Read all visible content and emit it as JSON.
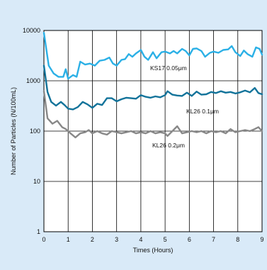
{
  "chart_data": {
    "type": "line",
    "xlabel": "Times (Hours)",
    "ylabel": "Number of Particles (N/100mL)",
    "xlim": [
      0,
      9
    ],
    "ylim": [
      1,
      10000
    ],
    "yscale": "log",
    "grid": true,
    "x_ticks": [
      "0",
      "1",
      "2",
      "3",
      "4",
      "5",
      "6",
      "7",
      "8",
      "9"
    ],
    "y_ticks": [
      "1",
      "10",
      "100",
      "1000",
      "10000"
    ],
    "colors": {
      "background": "#d9eaf8",
      "plot_area": "#ffffff"
    },
    "series": [
      {
        "name": "KS17 0.05μm",
        "color": "#2bb0e6",
        "points": [
          [
            0,
            9000
          ],
          [
            0.2,
            2000
          ],
          [
            0.4,
            1400
          ],
          [
            0.6,
            1200
          ],
          [
            0.8,
            1200
          ],
          [
            0.9,
            1700
          ],
          [
            1.0,
            1100
          ],
          [
            1.2,
            1300
          ],
          [
            1.35,
            1200
          ],
          [
            1.5,
            2400
          ],
          [
            1.7,
            2100
          ],
          [
            1.9,
            2200
          ],
          [
            2.1,
            2000
          ],
          [
            2.3,
            2500
          ],
          [
            2.5,
            2600
          ],
          [
            2.7,
            2900
          ],
          [
            2.85,
            2200
          ],
          [
            3.0,
            2000
          ],
          [
            3.2,
            2600
          ],
          [
            3.35,
            2700
          ],
          [
            3.5,
            3400
          ],
          [
            3.65,
            3000
          ],
          [
            3.8,
            3500
          ],
          [
            4.0,
            4100
          ],
          [
            4.15,
            3000
          ],
          [
            4.3,
            2600
          ],
          [
            4.5,
            3700
          ],
          [
            4.65,
            2800
          ],
          [
            4.85,
            3700
          ],
          [
            5.0,
            3800
          ],
          [
            5.2,
            3500
          ],
          [
            5.35,
            3900
          ],
          [
            5.5,
            3500
          ],
          [
            5.7,
            4300
          ],
          [
            5.85,
            3900
          ],
          [
            6.0,
            3200
          ],
          [
            6.15,
            4300
          ],
          [
            6.3,
            4400
          ],
          [
            6.5,
            3900
          ],
          [
            6.65,
            3000
          ],
          [
            6.85,
            3600
          ],
          [
            7.0,
            3800
          ],
          [
            7.2,
            3600
          ],
          [
            7.4,
            4100
          ],
          [
            7.6,
            4200
          ],
          [
            7.75,
            4900
          ],
          [
            7.9,
            3700
          ],
          [
            8.1,
            3100
          ],
          [
            8.25,
            4000
          ],
          [
            8.4,
            3400
          ],
          [
            8.6,
            3000
          ],
          [
            8.75,
            4600
          ],
          [
            8.9,
            4300
          ],
          [
            9.0,
            3300
          ]
        ]
      },
      {
        "name": "KL26 0.1μm",
        "color": "#12739a",
        "points": [
          [
            0,
            2000
          ],
          [
            0.15,
            600
          ],
          [
            0.3,
            380
          ],
          [
            0.5,
            320
          ],
          [
            0.7,
            380
          ],
          [
            0.85,
            330
          ],
          [
            1.0,
            280
          ],
          [
            1.2,
            270
          ],
          [
            1.4,
            300
          ],
          [
            1.6,
            380
          ],
          [
            1.8,
            340
          ],
          [
            2.0,
            290
          ],
          [
            2.2,
            350
          ],
          [
            2.4,
            330
          ],
          [
            2.6,
            450
          ],
          [
            2.8,
            450
          ],
          [
            3.0,
            390
          ],
          [
            3.2,
            430
          ],
          [
            3.4,
            460
          ],
          [
            3.6,
            450
          ],
          [
            3.8,
            440
          ],
          [
            4.0,
            520
          ],
          [
            4.2,
            480
          ],
          [
            4.4,
            460
          ],
          [
            4.6,
            490
          ],
          [
            4.8,
            470
          ],
          [
            5.0,
            520
          ],
          [
            5.1,
            620
          ],
          [
            5.3,
            530
          ],
          [
            5.5,
            510
          ],
          [
            5.7,
            500
          ],
          [
            5.9,
            580
          ],
          [
            6.1,
            500
          ],
          [
            6.3,
            610
          ],
          [
            6.5,
            530
          ],
          [
            6.7,
            540
          ],
          [
            6.9,
            600
          ],
          [
            7.1,
            570
          ],
          [
            7.3,
            620
          ],
          [
            7.5,
            580
          ],
          [
            7.7,
            600
          ],
          [
            7.9,
            560
          ],
          [
            8.1,
            590
          ],
          [
            8.3,
            640
          ],
          [
            8.5,
            590
          ],
          [
            8.7,
            720
          ],
          [
            8.85,
            570
          ],
          [
            9.0,
            540
          ]
        ]
      },
      {
        "name": "KL26 0.2μm",
        "color": "#888888",
        "points": [
          [
            0,
            620
          ],
          [
            0.15,
            180
          ],
          [
            0.35,
            140
          ],
          [
            0.55,
            160
          ],
          [
            0.75,
            120
          ],
          [
            0.9,
            110
          ],
          [
            1.1,
            90
          ],
          [
            1.3,
            75
          ],
          [
            1.5,
            90
          ],
          [
            1.7,
            95
          ],
          [
            1.85,
            105
          ],
          [
            2.0,
            90
          ],
          [
            2.2,
            100
          ],
          [
            2.4,
            90
          ],
          [
            2.6,
            85
          ],
          [
            2.8,
            100
          ],
          [
            3.0,
            95
          ],
          [
            3.2,
            90
          ],
          [
            3.4,
            95
          ],
          [
            3.6,
            100
          ],
          [
            3.8,
            90
          ],
          [
            4.0,
            95
          ],
          [
            4.2,
            90
          ],
          [
            4.4,
            100
          ],
          [
            4.6,
            90
          ],
          [
            4.8,
            95
          ],
          [
            5.0,
            90
          ],
          [
            5.1,
            80
          ],
          [
            5.3,
            100
          ],
          [
            5.5,
            125
          ],
          [
            5.7,
            90
          ],
          [
            5.9,
            95
          ],
          [
            6.1,
            100
          ],
          [
            6.3,
            95
          ],
          [
            6.5,
            100
          ],
          [
            6.7,
            90
          ],
          [
            6.9,
            100
          ],
          [
            7.1,
            95
          ],
          [
            7.3,
            100
          ],
          [
            7.5,
            90
          ],
          [
            7.7,
            110
          ],
          [
            7.9,
            95
          ],
          [
            8.1,
            100
          ],
          [
            8.3,
            105
          ],
          [
            8.5,
            100
          ],
          [
            8.7,
            110
          ],
          [
            8.85,
            120
          ],
          [
            9.0,
            100
          ]
        ]
      }
    ]
  }
}
